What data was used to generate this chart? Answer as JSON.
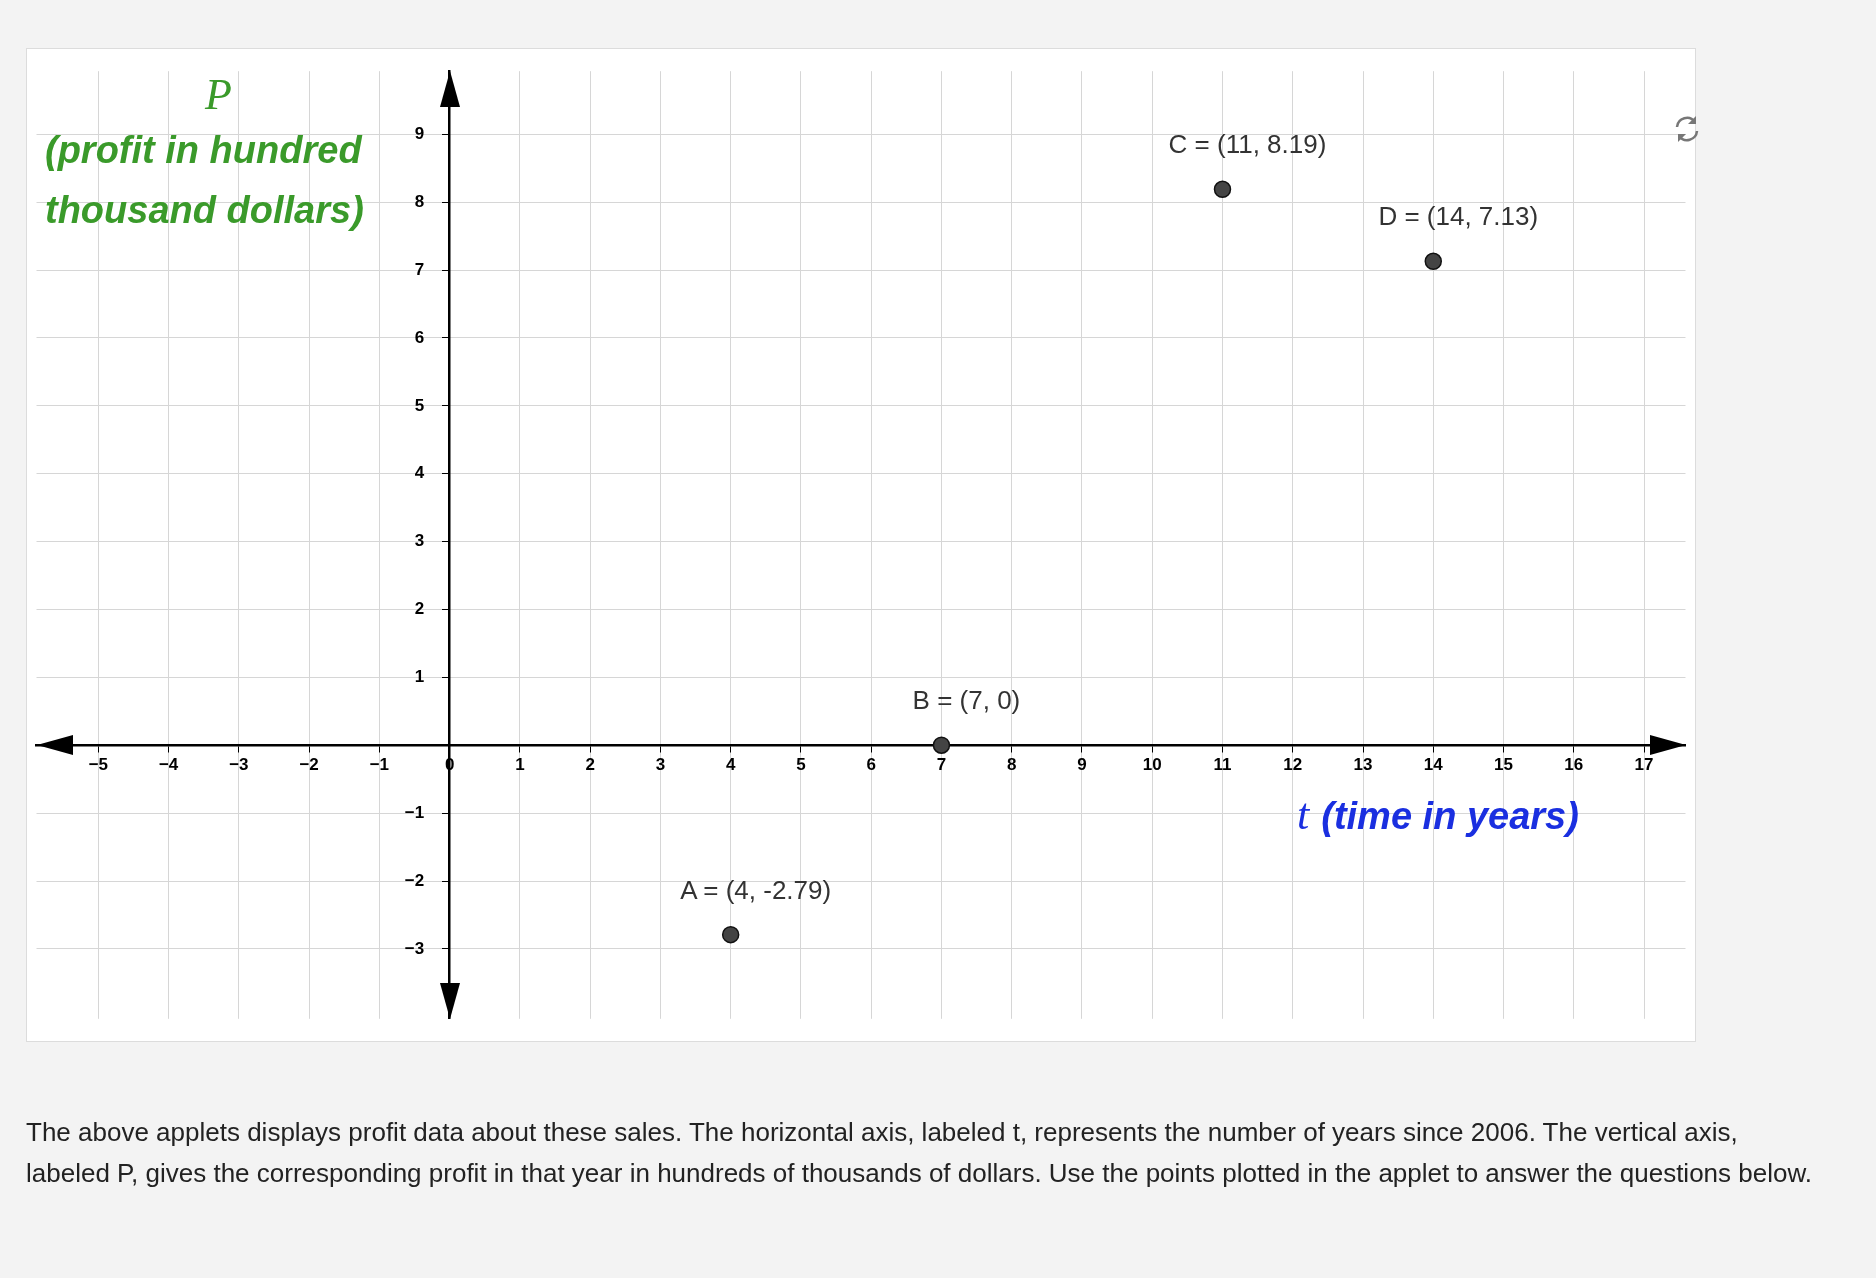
{
  "chart_data": {
    "type": "scatter",
    "xlabel": "t (time in years)",
    "ylabel": "P (profit in hundred thousand dollars)",
    "x": [
      4,
      7,
      11,
      14
    ],
    "values": [
      -2.79,
      0,
      8.19,
      7.13
    ],
    "color": "#444444",
    "marker": "circle",
    "grid": true,
    "legend": false,
    "xlim": [
      -5.88,
      17.59
    ],
    "ylim": [
      -4.03,
      9.93
    ],
    "xticks": [
      {
        "value": -5,
        "label": "−5"
      },
      {
        "value": -4,
        "label": "−4"
      },
      {
        "value": -3,
        "label": "−3"
      },
      {
        "value": -2,
        "label": "−2"
      },
      {
        "value": -1,
        "label": "−1"
      },
      0,
      1,
      2,
      3,
      4,
      5,
      6,
      7,
      8,
      9,
      10,
      11,
      12,
      13,
      14,
      15,
      16,
      17
    ],
    "yticks": [
      {
        "value": -3,
        "label": "−3"
      },
      {
        "value": -2,
        "label": "−2"
      },
      {
        "value": -1,
        "label": "−1"
      },
      {
        "value": 0,
        "label": null
      },
      1,
      2,
      3,
      4,
      5,
      6,
      7,
      8,
      9
    ],
    "annotations": [
      {
        "text": "A = (4, -2.79)",
        "x": 4,
        "y": -2.79
      },
      {
        "text": "B = (7, 0)",
        "x": 7,
        "y": 0
      },
      {
        "text": "C = (11, 8.19)",
        "x": 11,
        "y": 8.19
      },
      {
        "text": "D = (14, 7.13)",
        "x": 14,
        "y": 7.13
      },
      "The above applets displays profit data about these sales. The horizontal axis, labeled t, represents the number of years since 2006. The vertical axis, labeled P, gives the corresponding profit in that year in hundreds of thousands of dollars. Use the points plotted in the applet to answer the questions below."
    ]
  }
}
